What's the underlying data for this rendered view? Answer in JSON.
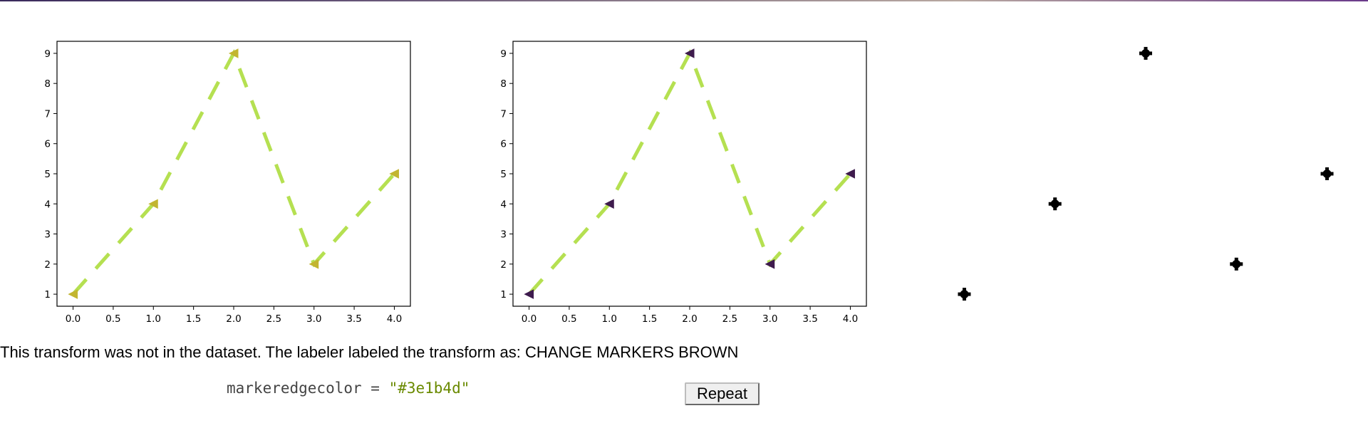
{
  "chart_data": [
    {
      "type": "line",
      "x": [
        0,
        1,
        2,
        3,
        4
      ],
      "y": [
        1,
        4,
        9,
        2,
        5
      ],
      "xticks": [
        "0.0",
        "0.5",
        "1.0",
        "1.5",
        "2.0",
        "2.5",
        "3.0",
        "3.5",
        "4.0"
      ],
      "yticks": [
        "1",
        "2",
        "3",
        "4",
        "5",
        "6",
        "7",
        "8",
        "9"
      ],
      "xlim": [
        -0.2,
        4.2
      ],
      "ylim": [
        0.6,
        9.4
      ],
      "line_color": "#b5e051",
      "line_style": "dashed",
      "marker": "triangle-left",
      "marker_color": "#c2b530",
      "marker_edge_color": "#c2b530",
      "axes": true
    },
    {
      "type": "line",
      "x": [
        0,
        1,
        2,
        3,
        4
      ],
      "y": [
        1,
        4,
        9,
        2,
        5
      ],
      "xticks": [
        "0.0",
        "0.5",
        "1.0",
        "1.5",
        "2.0",
        "2.5",
        "3.0",
        "3.5",
        "4.0"
      ],
      "yticks": [
        "1",
        "2",
        "3",
        "4",
        "5",
        "6",
        "7",
        "8",
        "9"
      ],
      "xlim": [
        -0.2,
        4.2
      ],
      "ylim": [
        0.6,
        9.4
      ],
      "line_color": "#b5e051",
      "line_style": "dashed",
      "marker": "triangle-left",
      "marker_color": "#3e1b4d",
      "marker_edge_color": "#3e1b4d",
      "axes": true
    },
    {
      "type": "scatter",
      "x": [
        0,
        1,
        2,
        3,
        4
      ],
      "y": [
        1,
        4,
        9,
        2,
        5
      ],
      "xlim": [
        -0.2,
        4.2
      ],
      "ylim": [
        0.6,
        9.4
      ],
      "marker": "blob",
      "marker_color": "#000000",
      "axes": false
    }
  ],
  "caption": {
    "text": "This transform was not in the dataset. The labeler labeled the transform as: CHANGE MARKERS BROWN"
  },
  "code": {
    "prefix": "markeredgecolor = ",
    "value": "\"#3e1b4d\""
  },
  "repeat_button": {
    "label": "Repeat"
  }
}
